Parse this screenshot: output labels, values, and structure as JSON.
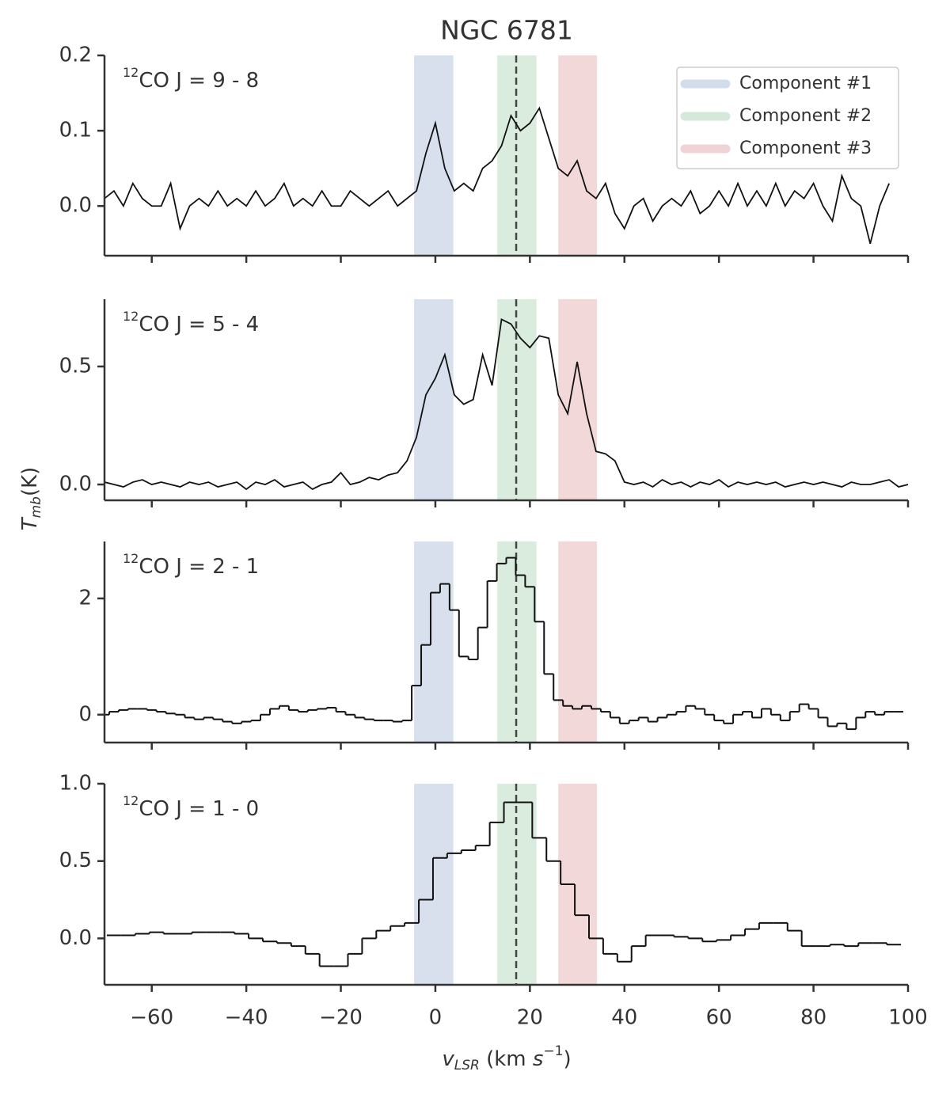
{
  "chart_data": {
    "type": "multi-panel",
    "title": "NGC 6781",
    "xlabel": [
      {
        "text": "v",
        "italic": true
      },
      {
        "text": "LSR",
        "italic": true,
        "sub": true
      },
      {
        "text": " (km "
      },
      {
        "text": "s",
        "italic": true
      },
      {
        "text": "−1",
        "sup": true
      },
      {
        "text": ")"
      }
    ],
    "ylabel": [
      {
        "text": "T",
        "italic": true
      },
      {
        "text": "mb",
        "italic": true,
        "sub": true
      },
      {
        "text": "(K)"
      }
    ],
    "xlim": [
      -70,
      100
    ],
    "xticks": [
      {
        "value": -60,
        "label": "−60"
      },
      {
        "value": -40,
        "label": "−40"
      },
      {
        "value": -20,
        "label": "−20"
      },
      0,
      20,
      40,
      60,
      80,
      100
    ],
    "legend": "upper right",
    "vline": 17.1,
    "bands": [
      {
        "name": "Component #1",
        "color": "#4c72b0",
        "range": [
          -4.5,
          3.8
        ]
      },
      {
        "name": "Component #2",
        "color": "#55a868",
        "range": [
          13.1,
          21.4
        ]
      },
      {
        "name": "Component #3",
        "color": "#c44e52",
        "range": [
          26,
          34.2
        ]
      }
    ],
    "panels": [
      {
        "type": "line",
        "label_sup": "12",
        "label": "CO J = 9 - 8",
        "ylim": [
          -0.066,
          0.2
        ],
        "yticks": [
          {
            "value": 0,
            "label": "0.0"
          },
          0.1,
          0.2
        ],
        "x": [
          -70,
          -68,
          -66,
          -64,
          -62,
          -60,
          -58,
          -56,
          -54,
          -52,
          -50,
          -48,
          -46,
          -44,
          -42,
          -40,
          -38,
          -36,
          -34,
          -32,
          -30,
          -28,
          -26,
          -24,
          -22,
          -20,
          -18,
          -16,
          -14,
          -12,
          -10,
          -8,
          -6,
          -4,
          -2,
          0,
          2,
          4,
          6,
          8,
          10,
          12,
          14,
          16,
          18,
          20,
          22,
          24,
          26,
          28,
          30,
          32,
          34,
          36,
          38,
          40,
          42,
          44,
          46,
          48,
          50,
          52,
          54,
          56,
          58,
          60,
          62,
          64,
          66,
          68,
          70,
          72,
          74,
          76,
          78,
          80,
          82,
          84,
          86,
          88,
          90,
          92,
          94,
          96
        ],
        "values": [
          0.01,
          0.02,
          0.0,
          0.03,
          0.01,
          0.0,
          0.0,
          0.03,
          -0.03,
          0.0,
          0.01,
          0.0,
          0.02,
          0.0,
          0.01,
          0.0,
          0.02,
          0.0,
          0.01,
          0.03,
          0.0,
          0.01,
          0.0,
          0.02,
          0.0,
          0.0,
          0.02,
          0.01,
          0.0,
          0.01,
          0.02,
          0.0,
          0.01,
          0.02,
          0.07,
          0.11,
          0.05,
          0.02,
          0.03,
          0.02,
          0.05,
          0.06,
          0.08,
          0.12,
          0.1,
          0.11,
          0.13,
          0.09,
          0.05,
          0.04,
          0.06,
          0.02,
          0.01,
          0.03,
          -0.01,
          -0.03,
          0.0,
          0.01,
          -0.02,
          0.0,
          0.01,
          0.0,
          0.02,
          -0.01,
          0.0,
          0.02,
          0.0,
          0.03,
          0.0,
          0.02,
          0.0,
          0.03,
          0.0,
          0.02,
          0.01,
          0.03,
          0.0,
          -0.02,
          0.04,
          0.01,
          0.0,
          -0.05,
          0.0,
          0.03
        ]
      },
      {
        "type": "line",
        "label_sup": "12",
        "label": "CO J = 5 - 4",
        "ylim": [
          -0.067,
          0.785
        ],
        "yticks": [
          {
            "value": 0,
            "label": "0.0"
          },
          0.5
        ],
        "x": [
          -70,
          -68,
          -66,
          -64,
          -62,
          -60,
          -58,
          -56,
          -54,
          -52,
          -50,
          -48,
          -46,
          -44,
          -42,
          -40,
          -38,
          -36,
          -34,
          -32,
          -30,
          -28,
          -26,
          -24,
          -22,
          -20,
          -18,
          -16,
          -14,
          -12,
          -10,
          -8,
          -6,
          -4,
          -2,
          0,
          2,
          4,
          6,
          8,
          10,
          12,
          14,
          16,
          18,
          20,
          22,
          24,
          26,
          28,
          30,
          32,
          34,
          36,
          38,
          40,
          42,
          44,
          46,
          48,
          50,
          52,
          54,
          56,
          58,
          60,
          62,
          64,
          66,
          68,
          70,
          72,
          74,
          76,
          78,
          80,
          82,
          84,
          86,
          88,
          90,
          92,
          94,
          96,
          98,
          100
        ],
        "values": [
          0.01,
          0.0,
          -0.01,
          0.01,
          0.02,
          0.0,
          0.01,
          0.0,
          -0.01,
          0.01,
          0.0,
          0.01,
          -0.01,
          0.0,
          0.01,
          -0.02,
          0.01,
          0.0,
          0.02,
          -0.01,
          0.0,
          0.01,
          -0.02,
          0.0,
          0.01,
          0.05,
          0.0,
          0.01,
          0.03,
          0.02,
          0.04,
          0.05,
          0.1,
          0.2,
          0.38,
          0.45,
          0.55,
          0.38,
          0.34,
          0.36,
          0.55,
          0.42,
          0.7,
          0.68,
          0.62,
          0.58,
          0.63,
          0.62,
          0.38,
          0.3,
          0.52,
          0.3,
          0.14,
          0.13,
          0.1,
          0.01,
          0.0,
          0.01,
          -0.01,
          0.02,
          0.0,
          0.01,
          -0.01,
          0.01,
          0.0,
          0.02,
          -0.01,
          0.01,
          0.0,
          0.01,
          0.0,
          0.01,
          -0.01,
          0.0,
          0.01,
          0.0,
          0.01,
          0.0,
          -0.01,
          0.01,
          0.0,
          0.0,
          0.01,
          0.02,
          -0.01,
          0.0
        ]
      },
      {
        "type": "step",
        "label_sup": "12",
        "label": "CO J = 2 - 1",
        "ylim": [
          -0.48,
          2.98
        ],
        "yticks": [
          0,
          2
        ],
        "x": [
          -70,
          -68,
          -66,
          -64,
          -62,
          -60,
          -58,
          -56,
          -54,
          -52,
          -50,
          -48,
          -46,
          -44,
          -42,
          -40,
          -38,
          -36,
          -34,
          -32,
          -30,
          -28,
          -26,
          -24,
          -22,
          -20,
          -18,
          -16,
          -14,
          -12,
          -10,
          -8,
          -6,
          -4,
          -2,
          0,
          2,
          4,
          6,
          8,
          10,
          12,
          14,
          16,
          18,
          20,
          22,
          24,
          26,
          28,
          30,
          32,
          34,
          36,
          38,
          40,
          42,
          44,
          46,
          48,
          50,
          52,
          54,
          56,
          58,
          60,
          62,
          64,
          66,
          68,
          70,
          72,
          74,
          76,
          78,
          80,
          82,
          84,
          86,
          88,
          90,
          92,
          94,
          96,
          98
        ],
        "values": [
          0.0,
          0.05,
          0.08,
          0.1,
          0.1,
          0.08,
          0.05,
          0.02,
          0.0,
          -0.05,
          -0.08,
          -0.05,
          -0.08,
          -0.12,
          -0.15,
          -0.12,
          -0.1,
          0.0,
          0.1,
          0.15,
          0.08,
          0.05,
          0.08,
          0.1,
          0.12,
          0.05,
          0.0,
          -0.05,
          -0.08,
          -0.1,
          -0.1,
          -0.12,
          -0.1,
          0.5,
          1.2,
          2.1,
          2.25,
          1.8,
          1.0,
          0.95,
          1.5,
          2.3,
          2.6,
          2.7,
          2.4,
          2.2,
          1.6,
          0.7,
          0.25,
          0.15,
          0.1,
          0.15,
          0.1,
          0.05,
          -0.05,
          -0.15,
          -0.1,
          -0.05,
          -0.12,
          -0.05,
          0.0,
          0.05,
          0.15,
          0.1,
          0.0,
          -0.1,
          -0.15,
          0.0,
          0.05,
          -0.05,
          0.1,
          0.0,
          -0.1,
          0.05,
          0.18,
          0.1,
          -0.05,
          -0.2,
          -0.15,
          -0.25,
          -0.05,
          0.05,
          0.0,
          0.05,
          0.05
        ]
      },
      {
        "type": "step",
        "label_sup": "12",
        "label": "CO J = 1 - 0",
        "ylim": [
          -0.3,
          1.0
        ],
        "yticks": [
          {
            "value": 0,
            "label": "0.0"
          },
          0.5,
          {
            "value": 1,
            "label": "1.0"
          }
        ],
        "x": [
          -68,
          -65,
          -62,
          -59,
          -56,
          -53,
          -50,
          -47,
          -44,
          -41,
          -38,
          -35,
          -32,
          -29,
          -26,
          -23,
          -20,
          -17,
          -14,
          -11,
          -8,
          -5,
          -2,
          1,
          4,
          7,
          10,
          13,
          16,
          19,
          22,
          25,
          28,
          31,
          34,
          37,
          40,
          43,
          46,
          49,
          52,
          55,
          58,
          61,
          64,
          67,
          70,
          73,
          76,
          79,
          82,
          85,
          88,
          91,
          94,
          97
        ],
        "values": [
          0.02,
          0.02,
          0.03,
          0.04,
          0.03,
          0.03,
          0.04,
          0.04,
          0.04,
          0.03,
          0.0,
          -0.02,
          -0.03,
          -0.05,
          -0.1,
          -0.18,
          -0.18,
          -0.1,
          0.0,
          0.05,
          0.08,
          0.1,
          0.25,
          0.52,
          0.55,
          0.57,
          0.6,
          0.75,
          0.88,
          0.88,
          0.65,
          0.5,
          0.35,
          0.15,
          0.0,
          -0.1,
          -0.15,
          -0.05,
          0.02,
          0.02,
          0.01,
          0.0,
          -0.02,
          -0.01,
          0.02,
          0.06,
          0.1,
          0.1,
          0.05,
          -0.05,
          -0.05,
          -0.04,
          -0.05,
          -0.03,
          -0.03,
          -0.04
        ]
      }
    ]
  }
}
